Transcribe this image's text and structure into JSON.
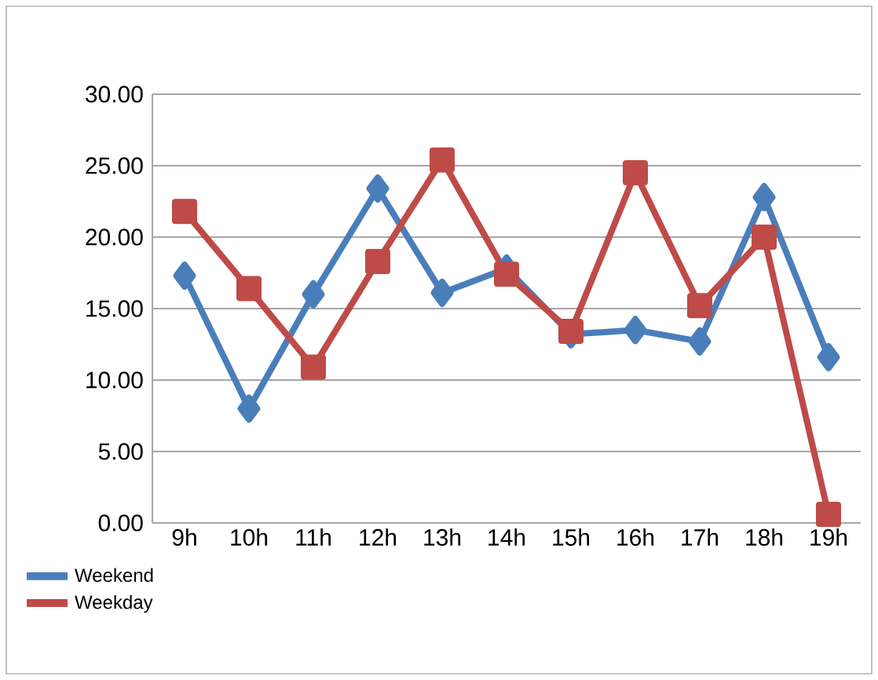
{
  "chart_data": {
    "type": "line",
    "categories": [
      "9h",
      "10h",
      "11h",
      "12h",
      "13h",
      "14h",
      "15h",
      "16h",
      "17h",
      "18h",
      "19h"
    ],
    "series": [
      {
        "name": "Weekend",
        "color": "#4a7ebb",
        "marker": "diamond",
        "values": [
          17.3,
          8.0,
          16.0,
          23.4,
          16.1,
          17.8,
          13.2,
          13.5,
          12.7,
          22.8,
          11.6
        ]
      },
      {
        "name": "Weekday",
        "color": "#be4b48",
        "marker": "square",
        "values": [
          21.8,
          16.4,
          10.9,
          18.3,
          25.4,
          17.4,
          13.4,
          24.5,
          15.2,
          20.0,
          0.6
        ]
      }
    ],
    "ylim": [
      0,
      30
    ],
    "yticks": [
      {
        "value": 0,
        "label": "0.00"
      },
      {
        "value": 5,
        "label": "5.00"
      },
      {
        "value": 10,
        "label": "10.00"
      },
      {
        "value": 15,
        "label": "15.00"
      },
      {
        "value": 20,
        "label": "20.00"
      },
      {
        "value": 25,
        "label": "25.00"
      },
      {
        "value": 30,
        "label": "30.00"
      }
    ],
    "grid": "y",
    "legend": "bottom left",
    "line_style": "solid"
  }
}
